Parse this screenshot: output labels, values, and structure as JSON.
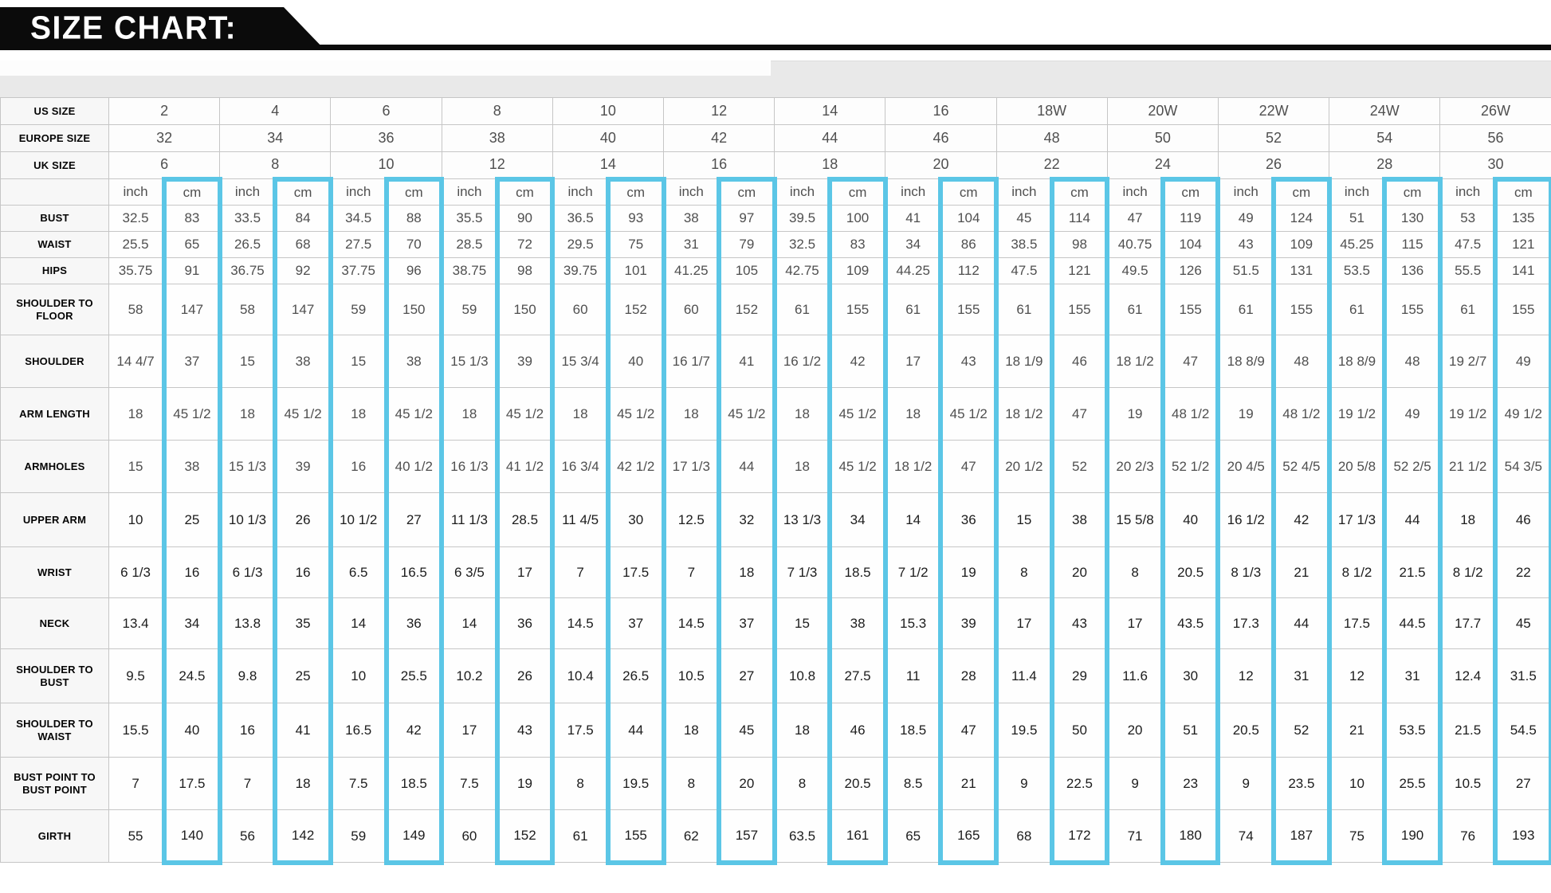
{
  "title": "SIZE CHART:",
  "colors": {
    "highlight": "#5bc6e6",
    "banner_bg": "#0b0b0b",
    "banner_text": "#ffffff"
  },
  "chart_data": {
    "type": "table",
    "title": "SIZE CHART:",
    "unit_labels": {
      "inch": "inch",
      "cm": "cm"
    },
    "size_rows": [
      {
        "label": "US SIZE",
        "values": [
          "2",
          "4",
          "6",
          "8",
          "10",
          "12",
          "14",
          "16",
          "18W",
          "20W",
          "22W",
          "24W",
          "26W"
        ]
      },
      {
        "label": "EUROPE SIZE",
        "values": [
          "32",
          "34",
          "36",
          "38",
          "40",
          "42",
          "44",
          "46",
          "48",
          "50",
          "52",
          "54",
          "56"
        ]
      },
      {
        "label": "UK SIZE",
        "values": [
          "6",
          "8",
          "10",
          "12",
          "14",
          "16",
          "18",
          "20",
          "22",
          "24",
          "26",
          "28",
          "30"
        ]
      }
    ],
    "measurement_rows": [
      {
        "label": "BUST",
        "inch": [
          "32.5",
          "33.5",
          "34.5",
          "35.5",
          "36.5",
          "38",
          "39.5",
          "41",
          "45",
          "47",
          "49",
          "51",
          "53"
        ],
        "cm": [
          "83",
          "84",
          "88",
          "90",
          "93",
          "97",
          "100",
          "104",
          "114",
          "119",
          "124",
          "130",
          "135"
        ]
      },
      {
        "label": "WAIST",
        "inch": [
          "25.5",
          "26.5",
          "27.5",
          "28.5",
          "29.5",
          "31",
          "32.5",
          "34",
          "38.5",
          "40.75",
          "43",
          "45.25",
          "47.5"
        ],
        "cm": [
          "65",
          "68",
          "70",
          "72",
          "75",
          "79",
          "83",
          "86",
          "98",
          "104",
          "109",
          "115",
          "121"
        ]
      },
      {
        "label": "HIPS",
        "inch": [
          "35.75",
          "36.75",
          "37.75",
          "38.75",
          "39.75",
          "41.25",
          "42.75",
          "44.25",
          "47.5",
          "49.5",
          "51.5",
          "53.5",
          "55.5"
        ],
        "cm": [
          "91",
          "92",
          "96",
          "98",
          "101",
          "105",
          "109",
          "112",
          "121",
          "126",
          "131",
          "136",
          "141"
        ]
      },
      {
        "label": "SHOULDER TO FLOOR",
        "inch": [
          "58",
          "58",
          "59",
          "59",
          "60",
          "60",
          "61",
          "61",
          "61",
          "61",
          "61",
          "61",
          "61"
        ],
        "cm": [
          "147",
          "147",
          "150",
          "150",
          "152",
          "152",
          "155",
          "155",
          "155",
          "155",
          "155",
          "155",
          "155"
        ]
      },
      {
        "label": "SHOULDER",
        "inch": [
          "14 4/7",
          "15",
          "15",
          "15 1/3",
          "15 3/4",
          "16 1/7",
          "16 1/2",
          "17",
          "18 1/9",
          "18 1/2",
          "18 8/9",
          "18 8/9",
          "19 2/7"
        ],
        "cm": [
          "37",
          "38",
          "38",
          "39",
          "40",
          "41",
          "42",
          "43",
          "46",
          "47",
          "48",
          "48",
          "49"
        ]
      },
      {
        "label": "ARM LENGTH",
        "inch": [
          "18",
          "18",
          "18",
          "18",
          "18",
          "18",
          "18",
          "18",
          "18 1/2",
          "19",
          "19",
          "19 1/2",
          "19 1/2"
        ],
        "cm": [
          "45 1/2",
          "45 1/2",
          "45 1/2",
          "45 1/2",
          "45 1/2",
          "45 1/2",
          "45 1/2",
          "45 1/2",
          "47",
          "48 1/2",
          "48 1/2",
          "49",
          "49 1/2"
        ]
      },
      {
        "label": "ARMHOLES",
        "inch": [
          "15",
          "15 1/3",
          "16",
          "16 1/3",
          "16 3/4",
          "17 1/3",
          "18",
          "18 1/2",
          "20 1/2",
          "20 2/3",
          "20 4/5",
          "20 5/8",
          "21 1/2"
        ],
        "cm": [
          "38",
          "39",
          "40 1/2",
          "41 1/2",
          "42 1/2",
          "44",
          "45 1/2",
          "47",
          "52",
          "52 1/2",
          "52 4/5",
          "52 2/5",
          "54 3/5"
        ]
      },
      {
        "label": "UPPER ARM",
        "inch": [
          "10",
          "10 1/3",
          "10 1/2",
          "11 1/3",
          "11 4/5",
          "12.5",
          "13 1/3",
          "14",
          "15",
          "15 5/8",
          "16 1/2",
          "17 1/3",
          "18"
        ],
        "cm": [
          "25",
          "26",
          "27",
          "28.5",
          "30",
          "32",
          "34",
          "36",
          "38",
          "40",
          "42",
          "44",
          "46"
        ]
      },
      {
        "label": "WRIST",
        "inch": [
          "6 1/3",
          "6 1/3",
          "6.5",
          "6 3/5",
          "7",
          "7",
          "7 1/3",
          "7 1/2",
          "8",
          "8",
          "8 1/3",
          "8 1/2",
          "8 1/2"
        ],
        "cm": [
          "16",
          "16",
          "16.5",
          "17",
          "17.5",
          "18",
          "18.5",
          "19",
          "20",
          "20.5",
          "21",
          "21.5",
          "22"
        ]
      },
      {
        "label": "NECK",
        "inch": [
          "13.4",
          "13.8",
          "14",
          "14",
          "14.5",
          "14.5",
          "15",
          "15.3",
          "17",
          "17",
          "17.3",
          "17.5",
          "17.7"
        ],
        "cm": [
          "34",
          "35",
          "36",
          "36",
          "37",
          "37",
          "38",
          "39",
          "43",
          "43.5",
          "44",
          "44.5",
          "45"
        ]
      },
      {
        "label": "SHOULDER TO BUST",
        "inch": [
          "9.5",
          "9.8",
          "10",
          "10.2",
          "10.4",
          "10.5",
          "10.8",
          "11",
          "11.4",
          "11.6",
          "12",
          "12",
          "12.4"
        ],
        "cm": [
          "24.5",
          "25",
          "25.5",
          "26",
          "26.5",
          "27",
          "27.5",
          "28",
          "29",
          "30",
          "31",
          "31",
          "31.5"
        ]
      },
      {
        "label": "SHOULDER TO WAIST",
        "inch": [
          "15.5",
          "16",
          "16.5",
          "17",
          "17.5",
          "18",
          "18",
          "18.5",
          "19.5",
          "20",
          "20.5",
          "21",
          "21.5"
        ],
        "cm": [
          "40",
          "41",
          "42",
          "43",
          "44",
          "45",
          "46",
          "47",
          "50",
          "51",
          "52",
          "53.5",
          "54.5"
        ]
      },
      {
        "label": "BUST POINT TO BUST POINT",
        "inch": [
          "7",
          "7",
          "7.5",
          "7.5",
          "8",
          "8",
          "8",
          "8.5",
          "9",
          "9",
          "9",
          "10",
          "10.5"
        ],
        "cm": [
          "17.5",
          "18",
          "18.5",
          "19",
          "19.5",
          "20",
          "20.5",
          "21",
          "22.5",
          "23",
          "23.5",
          "25.5",
          "27"
        ]
      },
      {
        "label": "GIRTH",
        "inch": [
          "55",
          "56",
          "59",
          "60",
          "61",
          "62",
          "63.5",
          "65",
          "68",
          "71",
          "74",
          "75",
          "76"
        ],
        "cm": [
          "140",
          "142",
          "149",
          "152",
          "155",
          "157",
          "161",
          "165",
          "172",
          "180",
          "187",
          "190",
          "193"
        ]
      }
    ]
  }
}
